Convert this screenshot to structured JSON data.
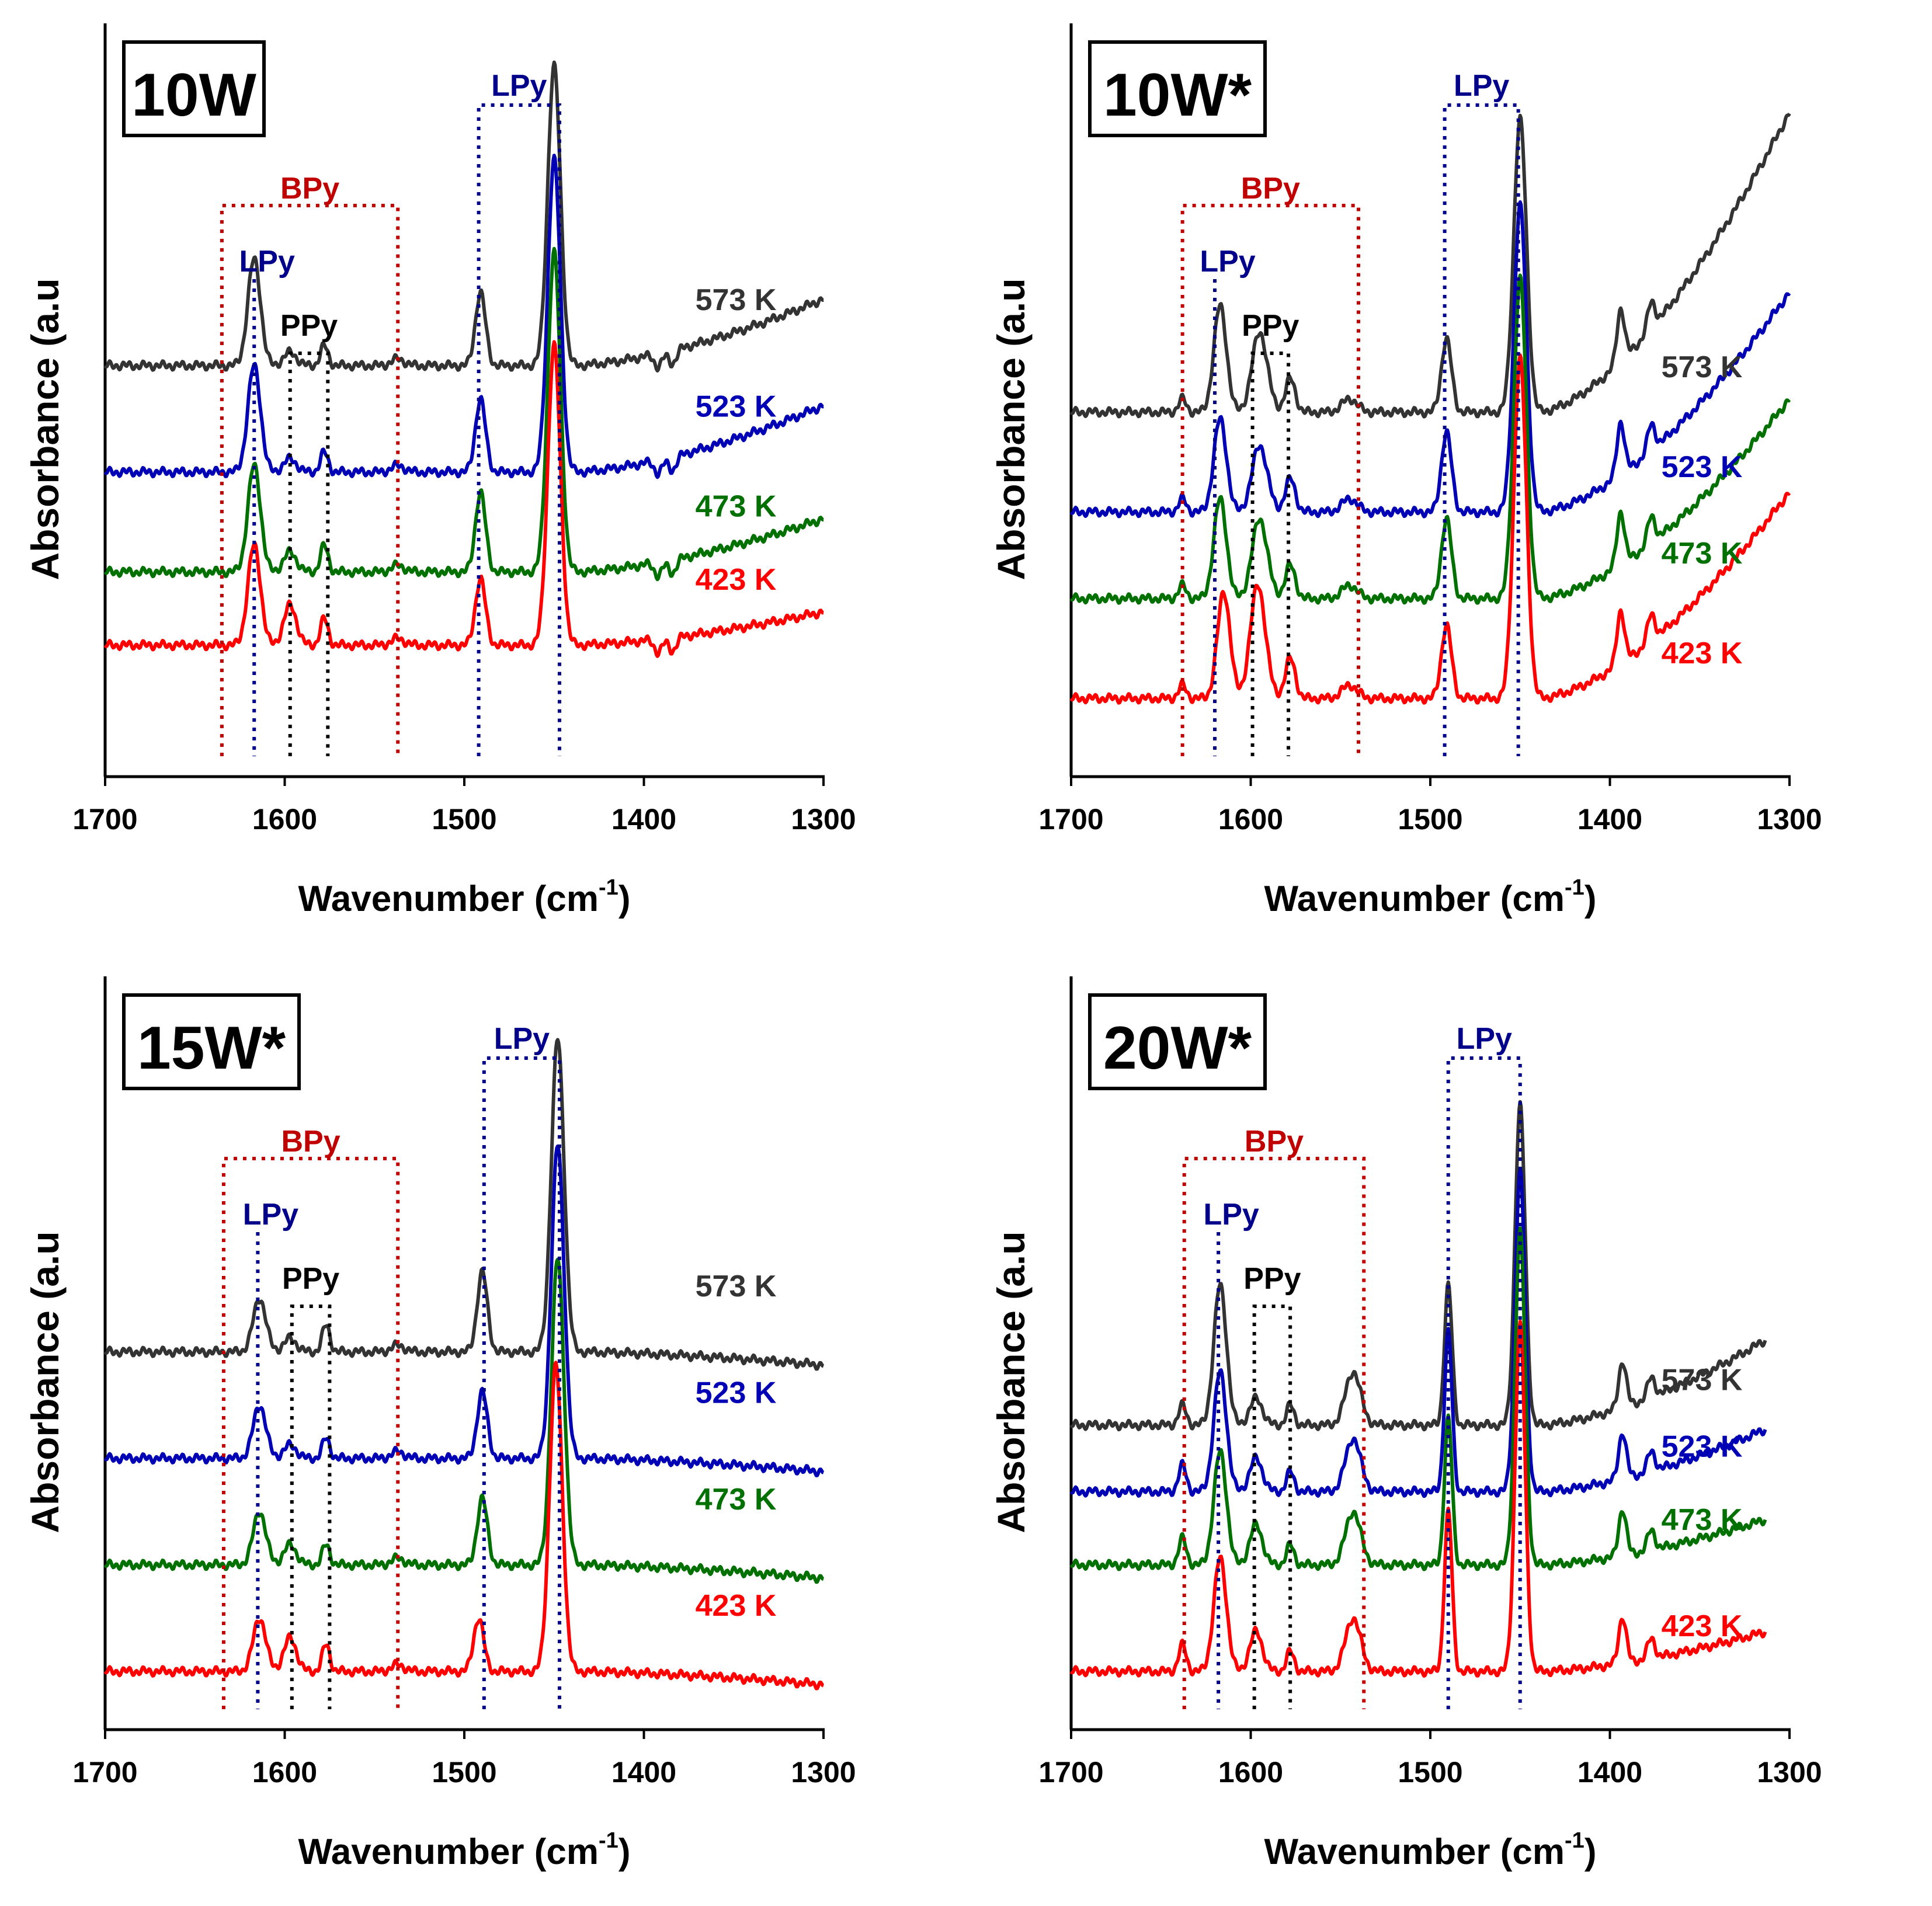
{
  "figure": "FTIR spectra of adsorbed pyridine at different temperatures",
  "colors": {
    "573 K": "#333333",
    "523 K": "#0000b4",
    "473 K": "#007000",
    "423 K": "#ff0000",
    "bpy_box": "#c00000",
    "lpy_line": "#00008b",
    "ppy_line": "#000000"
  },
  "chart_data": [
    {
      "type": "line",
      "panel_label": "10W",
      "xlabel": "Wavenumber (cm",
      "xlabel_sup": "-1",
      "xlabel_close": ")",
      "ylabel": "Absorbance (a.u",
      "xlim": [
        1700,
        1300
      ],
      "x_ticks": [
        "1700",
        "1600",
        "1500",
        "1400",
        "1300"
      ],
      "x_tick_values": [
        1700,
        1600,
        1500,
        1400,
        1300
      ],
      "annotations": {
        "bpy_label": "BPy",
        "bpy_range": [
          1635,
          1537
        ],
        "lpy_low_label": "LPy",
        "lpy_low_at": 1617,
        "ppy_label": "PPy",
        "ppy_at": [
          1597,
          1576
        ],
        "lpy_high_label": "LPy",
        "lpy_high_range": [
          1492,
          1447
        ]
      },
      "series": [
        {
          "name": "573 K",
          "baseline": 0.6,
          "tilt": 0.1,
          "peaks": [
            [
              1617,
              0.16,
              5
            ],
            [
              1597,
              0.02,
              5
            ],
            [
              1578,
              0.03,
              3
            ],
            [
              1537,
              0.01,
              5
            ],
            [
              1491,
              0.11,
              4
            ],
            [
              1450,
              0.45,
              5
            ],
            [
              1392,
              -0.02,
              3
            ],
            [
              1384,
              -0.02,
              3
            ]
          ]
        },
        {
          "name": "523 K",
          "baseline": 0.44,
          "tilt": 0.1,
          "peaks": [
            [
              1617,
              0.16,
              5
            ],
            [
              1597,
              0.02,
              5
            ],
            [
              1578,
              0.03,
              3
            ],
            [
              1537,
              0.01,
              5
            ],
            [
              1491,
              0.11,
              4
            ],
            [
              1450,
              0.47,
              5
            ],
            [
              1392,
              -0.02,
              3
            ],
            [
              1384,
              -0.02,
              3
            ]
          ]
        },
        {
          "name": "473 K",
          "baseline": 0.29,
          "tilt": 0.08,
          "peaks": [
            [
              1617,
              0.16,
              5
            ],
            [
              1597,
              0.03,
              5
            ],
            [
              1578,
              0.04,
              3
            ],
            [
              1537,
              0.01,
              5
            ],
            [
              1491,
              0.12,
              4
            ],
            [
              1450,
              0.48,
              5
            ],
            [
              1392,
              -0.02,
              3
            ],
            [
              1384,
              -0.02,
              3
            ]
          ]
        },
        {
          "name": "423 K",
          "baseline": 0.18,
          "tilt": 0.05,
          "peaks": [
            [
              1617,
              0.15,
              5
            ],
            [
              1597,
              0.06,
              5
            ],
            [
              1578,
              0.04,
              3
            ],
            [
              1537,
              0.01,
              5
            ],
            [
              1491,
              0.1,
              4
            ],
            [
              1450,
              0.45,
              5
            ],
            [
              1392,
              -0.02,
              3
            ],
            [
              1384,
              -0.02,
              3
            ]
          ]
        }
      ]
    },
    {
      "type": "line",
      "panel_label": "10W*",
      "xlabel": "Wavenumber (cm",
      "xlabel_sup": "-1",
      "xlabel_close": ")",
      "ylabel": "Absorbance (a.u",
      "xlim": [
        1700,
        1300
      ],
      "x_ticks": [
        "1700",
        "1600",
        "1500",
        "1400",
        "1300"
      ],
      "x_tick_values": [
        1700,
        1600,
        1500,
        1400,
        1300
      ],
      "annotations": {
        "bpy_label": "BPy",
        "bpy_range": [
          1638,
          1540
        ],
        "lpy_low_label": "LPy",
        "lpy_low_at": 1620,
        "ppy_label": "PPy",
        "ppy_at": [
          1599,
          1579
        ],
        "lpy_high_label": "LPy",
        "lpy_high_range": [
          1492,
          1451
        ]
      },
      "series": [
        {
          "name": "573 K",
          "baseline": 0.53,
          "tilt": 0.45,
          "peaks": [
            [
              1638,
              0.02,
              3
            ],
            [
              1617,
              0.16,
              5
            ],
            [
              1595,
              0.12,
              6
            ],
            [
              1578,
              0.05,
              4
            ],
            [
              1545,
              0.02,
              6
            ],
            [
              1491,
              0.11,
              4
            ],
            [
              1450,
              0.44,
              5
            ],
            [
              1394,
              0.08,
              3
            ],
            [
              1377,
              0.04,
              3
            ]
          ]
        },
        {
          "name": "523 K",
          "baseline": 0.38,
          "tilt": 0.33,
          "peaks": [
            [
              1638,
              0.02,
              3
            ],
            [
              1617,
              0.14,
              5
            ],
            [
              1595,
              0.1,
              6
            ],
            [
              1578,
              0.05,
              4
            ],
            [
              1545,
              0.02,
              6
            ],
            [
              1491,
              0.12,
              4
            ],
            [
              1450,
              0.46,
              5
            ],
            [
              1394,
              0.08,
              3
            ],
            [
              1377,
              0.04,
              3
            ]
          ]
        },
        {
          "name": "473 K",
          "baseline": 0.25,
          "tilt": 0.3,
          "peaks": [
            [
              1638,
              0.02,
              3
            ],
            [
              1617,
              0.15,
              5
            ],
            [
              1595,
              0.12,
              6
            ],
            [
              1578,
              0.05,
              4
            ],
            [
              1545,
              0.02,
              6
            ],
            [
              1491,
              0.12,
              4
            ],
            [
              1450,
              0.48,
              5
            ],
            [
              1394,
              0.08,
              3
            ],
            [
              1377,
              0.04,
              3
            ]
          ]
        },
        {
          "name": "423 K",
          "baseline": 0.1,
          "tilt": 0.31,
          "peaks": [
            [
              1638,
              0.02,
              3
            ],
            [
              1615,
              0.16,
              5
            ],
            [
              1596,
              0.17,
              6
            ],
            [
              1578,
              0.06,
              4
            ],
            [
              1545,
              0.02,
              6
            ],
            [
              1491,
              0.11,
              4
            ],
            [
              1450,
              0.51,
              5
            ],
            [
              1394,
              0.08,
              3
            ],
            [
              1377,
              0.04,
              3
            ]
          ]
        }
      ]
    },
    {
      "type": "line",
      "panel_label": "15W*",
      "xlabel": "Wavenumber (cm",
      "xlabel_sup": "-1",
      "xlabel_close": ")",
      "ylabel": "Absorbance (a.u",
      "xlim": [
        1700,
        1300
      ],
      "x_ticks": [
        "1700",
        "1600",
        "1500",
        "1400",
        "1300"
      ],
      "x_tick_values": [
        1700,
        1600,
        1500,
        1400,
        1300
      ],
      "annotations": {
        "bpy_label": "BPy",
        "bpy_range": [
          1634,
          1537
        ],
        "lpy_low_label": "LPy",
        "lpy_low_at": 1615,
        "ppy_label": "PPy",
        "ppy_at": [
          1596,
          1575
        ],
        "lpy_high_label": "LPy",
        "lpy_high_range": [
          1489,
          1447
        ]
      },
      "series": [
        {
          "name": "573 K",
          "baseline": 0.55,
          "tilt": -0.02,
          "peaks": [
            [
              1614,
              0.08,
              5
            ],
            [
              1597,
              0.02,
              5
            ],
            [
              1577,
              0.04,
              3
            ],
            [
              1537,
              0.01,
              5
            ],
            [
              1490,
              0.12,
              4
            ],
            [
              1448,
              0.47,
              5
            ]
          ]
        },
        {
          "name": "523 K",
          "baseline": 0.39,
          "tilt": -0.02,
          "peaks": [
            [
              1614,
              0.08,
              5
            ],
            [
              1597,
              0.02,
              5
            ],
            [
              1577,
              0.03,
              3
            ],
            [
              1537,
              0.01,
              5
            ],
            [
              1490,
              0.1,
              4
            ],
            [
              1448,
              0.47,
              5
            ]
          ]
        },
        {
          "name": "473 K",
          "baseline": 0.23,
          "tilt": -0.02,
          "peaks": [
            [
              1614,
              0.08,
              5
            ],
            [
              1597,
              0.03,
              5
            ],
            [
              1577,
              0.03,
              3
            ],
            [
              1537,
              0.01,
              5
            ],
            [
              1490,
              0.1,
              4
            ],
            [
              1448,
              0.46,
              5
            ]
          ]
        },
        {
          "name": "423 K",
          "baseline": 0.07,
          "tilt": -0.02,
          "peaks": [
            [
              1614,
              0.08,
              5
            ],
            [
              1597,
              0.05,
              5
            ],
            [
              1577,
              0.04,
              3
            ],
            [
              1537,
              0.01,
              5
            ],
            [
              1492,
              0.08,
              4
            ],
            [
              1449,
              0.46,
              5
            ]
          ]
        }
      ]
    },
    {
      "type": "line",
      "panel_label": "20W*",
      "xlabel": "Wavenumber (cm",
      "xlabel_sup": "-1",
      "xlabel_close": ")",
      "ylabel": "Absorbance (a.u",
      "xlim": [
        1700,
        1300
      ],
      "x_ticks": [
        "1700",
        "1600",
        "1500",
        "1400",
        "1300"
      ],
      "x_tick_values": [
        1700,
        1600,
        1500,
        1400,
        1300
      ],
      "annotations": {
        "bpy_label": "BPy",
        "bpy_range": [
          1637,
          1537
        ],
        "lpy_low_label": "LPy",
        "lpy_low_at": 1618,
        "ppy_label": "PPy",
        "ppy_at": [
          1598,
          1578
        ],
        "lpy_high_label": "LPy",
        "lpy_high_range": [
          1490,
          1450
        ]
      },
      "series": [
        {
          "name": "573 K",
          "baseline": 0.44,
          "tilt": 0.15,
          "peaks": [
            [
              1638,
              0.03,
              3
            ],
            [
              1617,
              0.21,
              5
            ],
            [
              1597,
              0.04,
              5
            ],
            [
              1578,
              0.03,
              3
            ],
            [
              1543,
              0.08,
              6
            ],
            [
              1490,
              0.21,
              3
            ],
            [
              1450,
              0.48,
              4
            ],
            [
              1393,
              0.07,
              3
            ],
            [
              1377,
              0.03,
              3
            ]
          ]
        },
        {
          "name": "523 K",
          "baseline": 0.34,
          "tilt": 0.11,
          "peaks": [
            [
              1638,
              0.04,
              3
            ],
            [
              1617,
              0.18,
              5
            ],
            [
              1597,
              0.05,
              5
            ],
            [
              1578,
              0.03,
              3
            ],
            [
              1543,
              0.08,
              6
            ],
            [
              1490,
              0.24,
              3
            ],
            [
              1450,
              0.48,
              4
            ],
            [
              1393,
              0.07,
              3
            ],
            [
              1377,
              0.03,
              3
            ]
          ]
        },
        {
          "name": "473 K",
          "baseline": 0.23,
          "tilt": 0.08,
          "peaks": [
            [
              1638,
              0.04,
              3
            ],
            [
              1617,
              0.17,
              5
            ],
            [
              1597,
              0.06,
              5
            ],
            [
              1578,
              0.03,
              3
            ],
            [
              1543,
              0.08,
              6
            ],
            [
              1490,
              0.22,
              3
            ],
            [
              1450,
              0.5,
              4
            ],
            [
              1393,
              0.07,
              3
            ],
            [
              1377,
              0.03,
              3
            ]
          ]
        },
        {
          "name": "423 K",
          "baseline": 0.07,
          "tilt": 0.07,
          "peaks": [
            [
              1638,
              0.04,
              3
            ],
            [
              1617,
              0.17,
              5
            ],
            [
              1597,
              0.06,
              5
            ],
            [
              1578,
              0.03,
              3
            ],
            [
              1543,
              0.08,
              6
            ],
            [
              1490,
              0.24,
              3
            ],
            [
              1450,
              0.52,
              4
            ],
            [
              1393,
              0.07,
              3
            ],
            [
              1377,
              0.03,
              3
            ]
          ]
        }
      ]
    }
  ]
}
